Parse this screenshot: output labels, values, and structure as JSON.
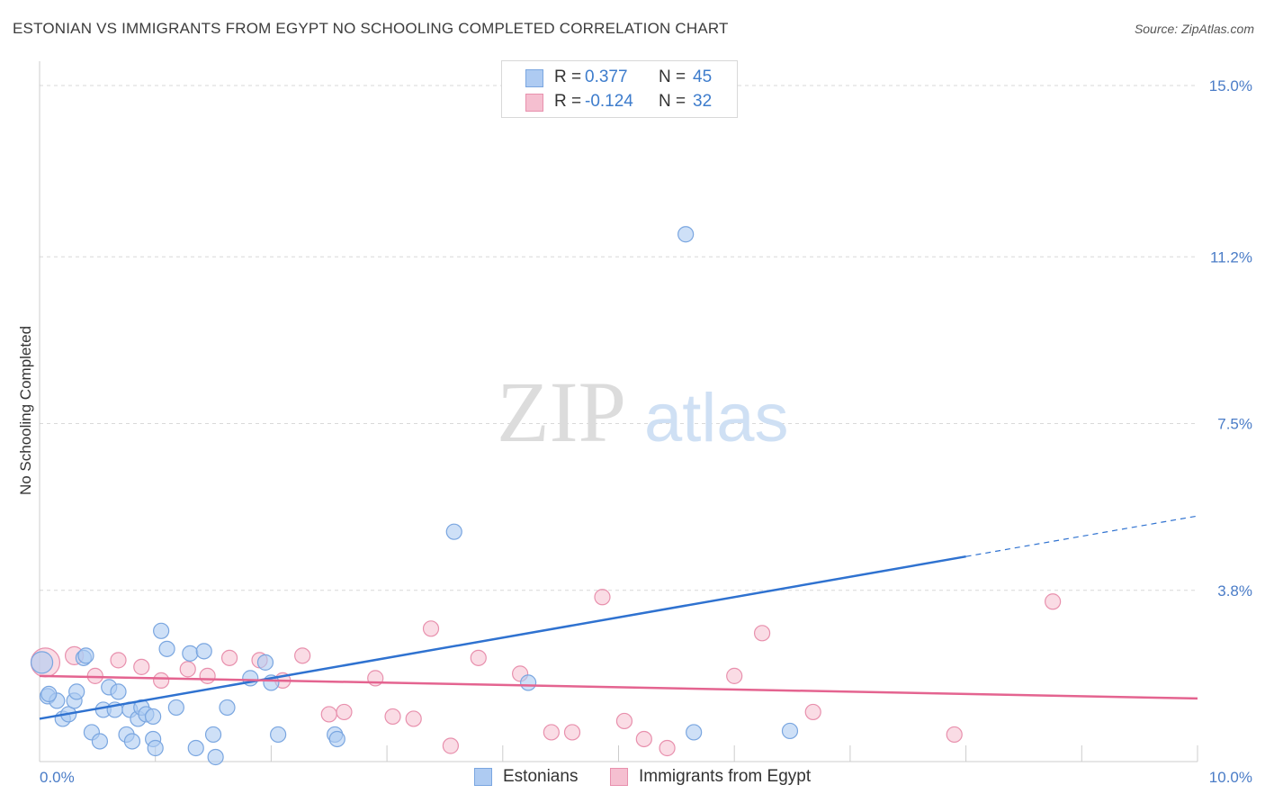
{
  "title": "ESTONIAN VS IMMIGRANTS FROM EGYPT NO SCHOOLING COMPLETED CORRELATION CHART",
  "source": "Source: ZipAtlas.com",
  "watermark": {
    "zip": "ZIP",
    "atlas": "atlas"
  },
  "colors": {
    "blue_fill": "#aecbf2",
    "blue_stroke": "#7aa6e0",
    "blue_line": "#2f72d0",
    "pink_fill": "#f5bfd0",
    "pink_stroke": "#e890ad",
    "pink_line": "#e46490",
    "grid": "#d9d9d9",
    "tick_label": "#4a7cc7"
  },
  "legend": [
    {
      "r_label": "R =",
      "r_value": "0.377",
      "n_label": "N =",
      "n_value": "45"
    },
    {
      "r_label": "R =",
      "r_value": "-0.124",
      "n_label": "N =",
      "n_value": "32"
    }
  ],
  "bottom_legend": [
    "Estonians",
    "Immigrants from Egypt"
  ],
  "chart_data": {
    "type": "scatter",
    "title": "ESTONIAN VS IMMIGRANTS FROM EGYPT NO SCHOOLING COMPLETED CORRELATION CHART",
    "xlabel": "",
    "ylabel": "No Schooling Completed",
    "xlim": [
      0,
      10
    ],
    "ylim": [
      0,
      15.4
    ],
    "x_tick_labels": [
      "0.0%",
      "10.0%"
    ],
    "y_ticks": [
      3.8,
      7.5,
      11.2,
      15.0
    ],
    "y_tick_labels": [
      "3.8%",
      "7.5%",
      "11.2%",
      "15.0%"
    ],
    "series": [
      {
        "name": "Estonians",
        "r": 0.377,
        "n": 45,
        "trend": {
          "x0": 0,
          "y0": 0.95,
          "x1": 8.0,
          "y1": 4.55,
          "dash_x1": 10.0,
          "dash_y1": 5.45
        },
        "points": [
          [
            0.02,
            2.2
          ],
          [
            0.07,
            1.45
          ],
          [
            0.15,
            1.35
          ],
          [
            0.2,
            0.95
          ],
          [
            0.25,
            1.05
          ],
          [
            0.3,
            1.35
          ],
          [
            0.32,
            1.55
          ],
          [
            0.38,
            2.3
          ],
          [
            0.45,
            0.65
          ],
          [
            0.52,
            0.45
          ],
          [
            0.55,
            1.15
          ],
          [
            0.6,
            1.65
          ],
          [
            0.65,
            1.15
          ],
          [
            0.68,
            1.55
          ],
          [
            0.75,
            0.6
          ],
          [
            0.78,
            1.15
          ],
          [
            0.8,
            0.45
          ],
          [
            0.85,
            0.95
          ],
          [
            0.88,
            1.2
          ],
          [
            0.92,
            1.05
          ],
          [
            0.98,
            1.0
          ],
          [
            0.98,
            0.5
          ],
          [
            1.0,
            0.3
          ],
          [
            1.05,
            2.9
          ],
          [
            1.1,
            2.5
          ],
          [
            1.18,
            1.2
          ],
          [
            1.3,
            2.4
          ],
          [
            1.35,
            0.3
          ],
          [
            1.42,
            2.45
          ],
          [
            1.5,
            0.6
          ],
          [
            1.52,
            0.1
          ],
          [
            1.62,
            1.2
          ],
          [
            1.82,
            1.85
          ],
          [
            1.95,
            2.2
          ],
          [
            2.0,
            1.75
          ],
          [
            2.06,
            0.6
          ],
          [
            2.55,
            0.6
          ],
          [
            2.57,
            0.5
          ],
          [
            3.58,
            5.1
          ],
          [
            4.22,
            1.75
          ],
          [
            5.65,
            0.65
          ],
          [
            5.58,
            11.7
          ],
          [
            6.48,
            0.68
          ],
          [
            0.08,
            1.5
          ],
          [
            0.4,
            2.35
          ]
        ]
      },
      {
        "name": "Immigrants from Egypt",
        "r": -0.124,
        "n": 32,
        "trend": {
          "x0": 0,
          "y0": 1.9,
          "x1": 10.0,
          "y1": 1.4
        },
        "points": [
          [
            0.05,
            2.2
          ],
          [
            0.3,
            2.35
          ],
          [
            0.48,
            1.9
          ],
          [
            0.68,
            2.25
          ],
          [
            0.88,
            2.1
          ],
          [
            1.05,
            1.8
          ],
          [
            1.28,
            2.05
          ],
          [
            1.45,
            1.9
          ],
          [
            1.64,
            2.3
          ],
          [
            1.9,
            2.25
          ],
          [
            2.1,
            1.8
          ],
          [
            2.27,
            2.35
          ],
          [
            2.5,
            1.05
          ],
          [
            2.63,
            1.1
          ],
          [
            2.9,
            1.85
          ],
          [
            3.05,
            1.0
          ],
          [
            3.23,
            0.95
          ],
          [
            3.38,
            2.95
          ],
          [
            3.55,
            0.35
          ],
          [
            3.79,
            2.3
          ],
          [
            4.15,
            1.95
          ],
          [
            4.42,
            0.65
          ],
          [
            4.6,
            0.65
          ],
          [
            4.86,
            3.65
          ],
          [
            5.05,
            0.9
          ],
          [
            5.22,
            0.5
          ],
          [
            5.42,
            0.3
          ],
          [
            6.0,
            1.9
          ],
          [
            6.24,
            2.85
          ],
          [
            6.68,
            1.1
          ],
          [
            7.9,
            0.6
          ],
          [
            8.75,
            3.55
          ]
        ]
      }
    ]
  }
}
